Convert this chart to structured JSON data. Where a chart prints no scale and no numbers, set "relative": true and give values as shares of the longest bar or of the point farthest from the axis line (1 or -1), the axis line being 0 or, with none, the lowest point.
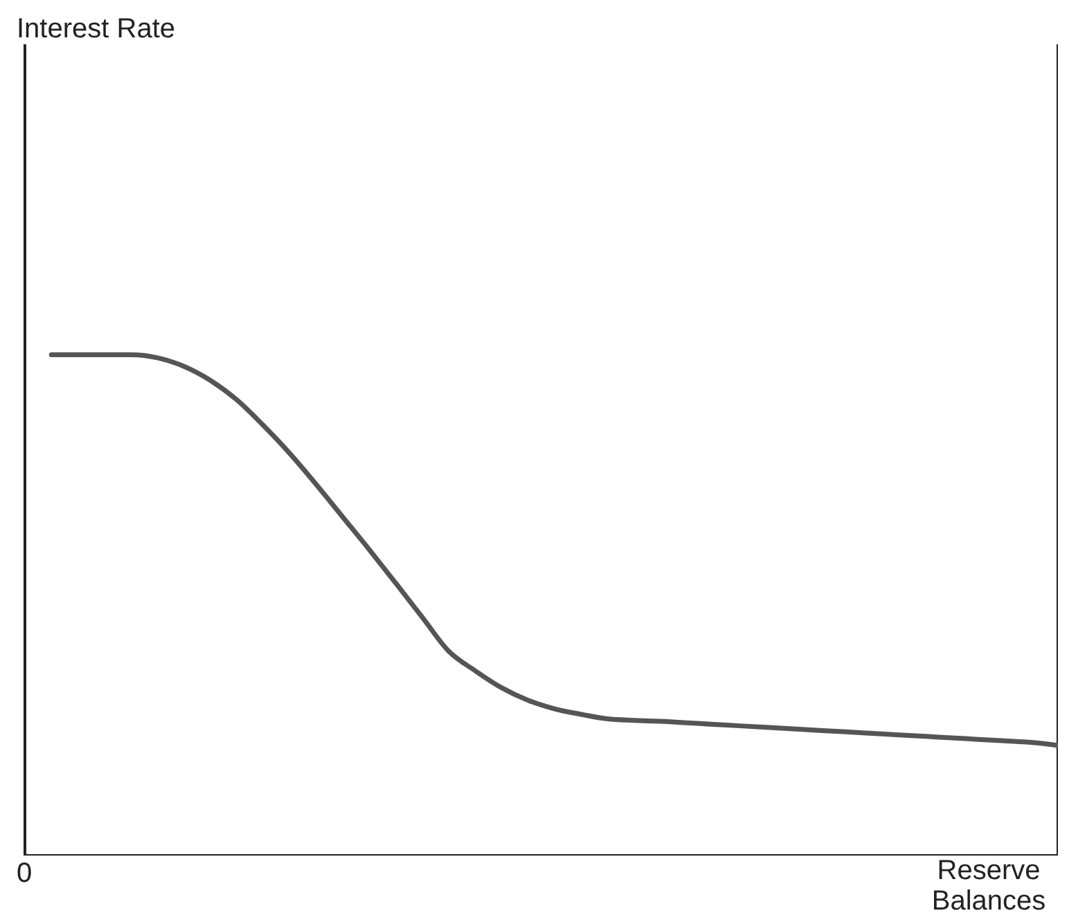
{
  "chart_data": {
    "type": "line",
    "relative": true,
    "xlabel": "Reserve Balances",
    "annotations": [
      "Interest Rate",
      "0"
    ],
    "color": "#555555",
    "grid": false,
    "legend": false,
    "marker": "none",
    "categories": [
      null,
      null,
      null,
      null,
      null,
      null,
      null,
      null,
      null,
      null,
      null,
      null,
      null,
      null,
      null,
      null,
      null,
      null,
      null,
      null,
      null,
      null,
      null,
      null,
      null,
      null,
      null,
      null,
      null,
      null,
      null,
      null,
      null,
      null,
      null,
      null,
      null,
      null,
      null,
      null
    ],
    "values": [
      null,
      1,
      1,
      1,
      1,
      0.994,
      0.977,
      0.949,
      0.91,
      0.859,
      0.803,
      0.741,
      0.676,
      0.611,
      0.544,
      0.476,
      0.408,
      0.369,
      0.335,
      0.31,
      0.293,
      0.282,
      0.273,
      0.27,
      0.268,
      0.265,
      0.262,
      0.259,
      0.256,
      0.253,
      0.25,
      0.247,
      0.244,
      0.241,
      0.238,
      0.235,
      0.232,
      0.229,
      0.226,
      0.22
    ]
  }
}
